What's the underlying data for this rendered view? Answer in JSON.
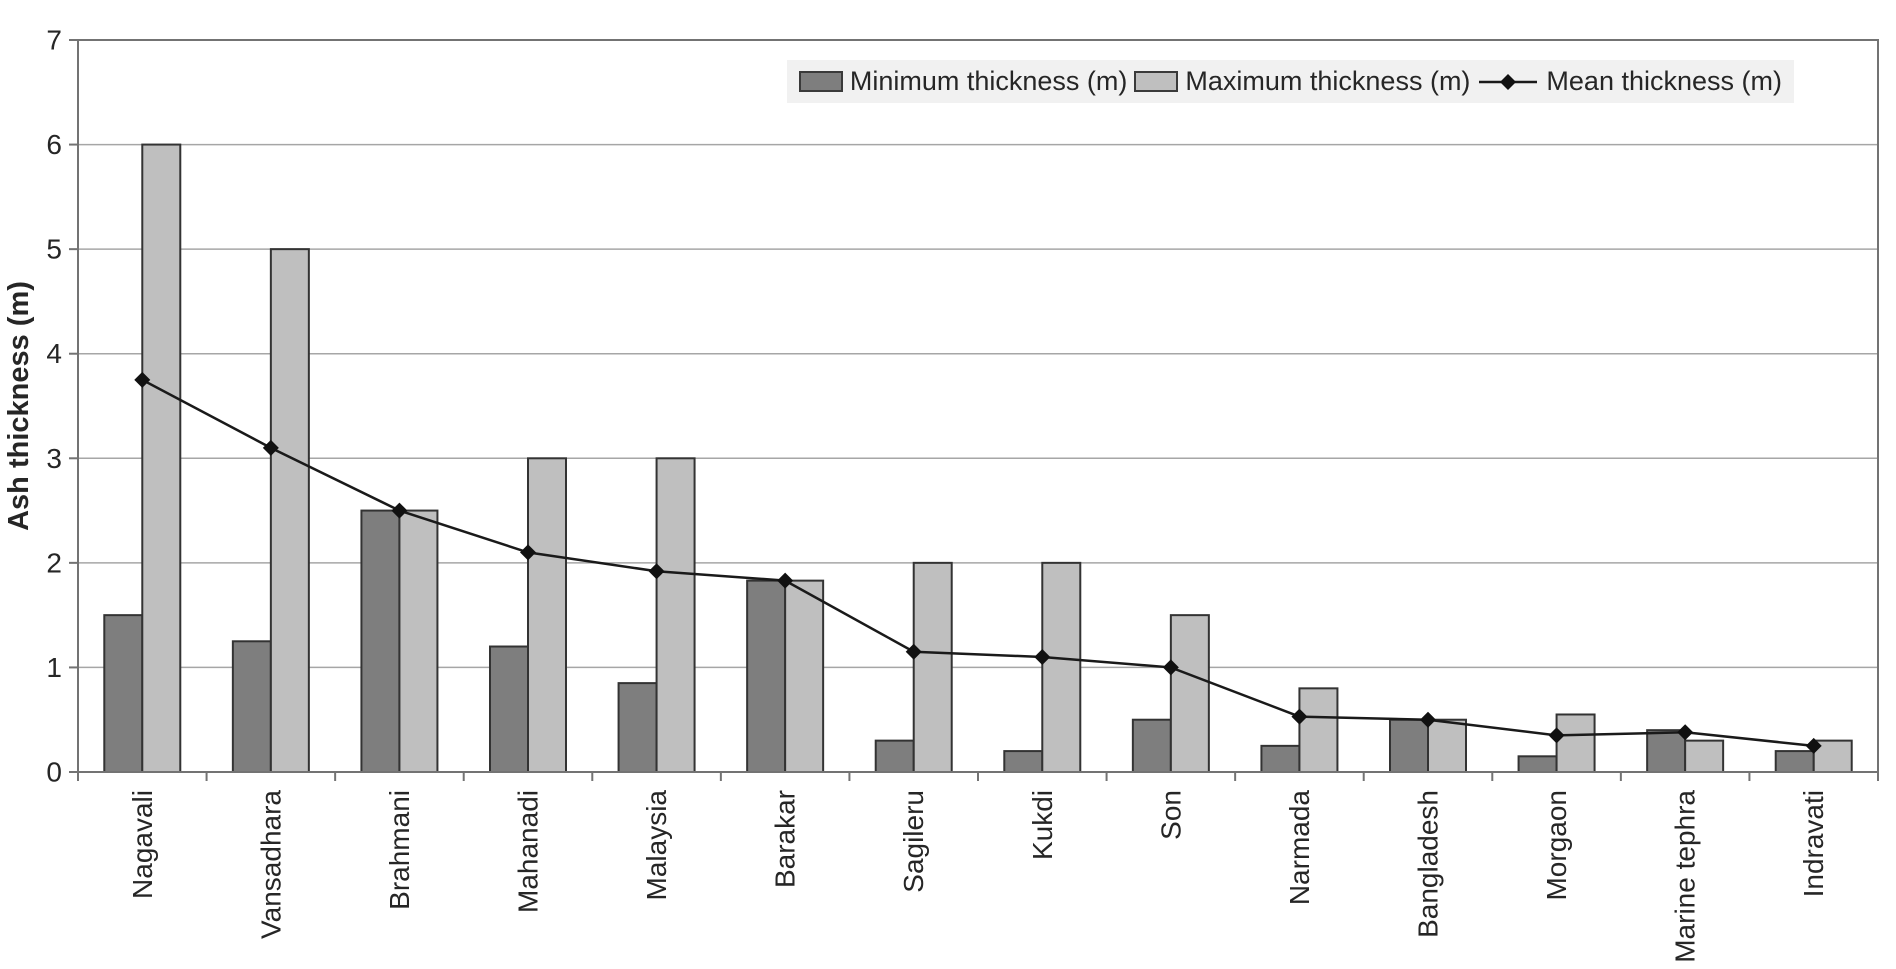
{
  "figure": {
    "background": "#ffffff",
    "plot_border_color": "#737373",
    "gridline_color": "#a6a6a6",
    "text_color": "#262626"
  },
  "legend": {
    "items": [
      {
        "label": "Minimum thickness (m)",
        "swatch": "dark-gray-bar"
      },
      {
        "label": "Maximum thickness (m)",
        "swatch": "light-gray-bar"
      },
      {
        "label": "Mean thickness (m)",
        "swatch": "black-line-diamond"
      }
    ],
    "position": "top-right-inside"
  },
  "chart_data": {
    "type": "bar",
    "title": "",
    "xlabel": "",
    "ylabel": "Ash thickness (m)",
    "ylim": [
      0,
      7
    ],
    "yticks": [
      0,
      1,
      2,
      3,
      4,
      5,
      6,
      7
    ],
    "grid": true,
    "legend_position": "top-right-inside",
    "categories": [
      "Nagavali",
      "Vansadhara",
      "Brahmani",
      "Mahanadi",
      "Malaysia",
      "Barakar",
      "Sagileru",
      "Kukdi",
      "Son",
      "Narmada",
      "Bangladesh",
      "Morgaon",
      "Marine tephra",
      "Indravati"
    ],
    "series": [
      {
        "name": "Minimum thickness (m)",
        "type": "bar",
        "color": "#7e7e7e",
        "values": [
          1.5,
          1.25,
          2.5,
          1.2,
          0.85,
          1.83,
          0.3,
          0.2,
          0.5,
          0.25,
          0.5,
          0.15,
          0.4,
          0.2
        ]
      },
      {
        "name": "Maximum thickness (m)",
        "type": "bar",
        "color": "#bfbfbf",
        "values": [
          6,
          5,
          2.5,
          3,
          3,
          1.83,
          2,
          2,
          1.5,
          0.8,
          0.5,
          0.55,
          0.3,
          0.3
        ]
      },
      {
        "name": "Mean thickness (m)",
        "type": "line",
        "marker": "diamond",
        "color": "#1a1a1a",
        "values": [
          3.75,
          3.1,
          2.5,
          2.1,
          1.92,
          1.83,
          1.15,
          1.1,
          1.0,
          0.53,
          0.5,
          0.35,
          0.38,
          0.25
        ]
      }
    ]
  }
}
